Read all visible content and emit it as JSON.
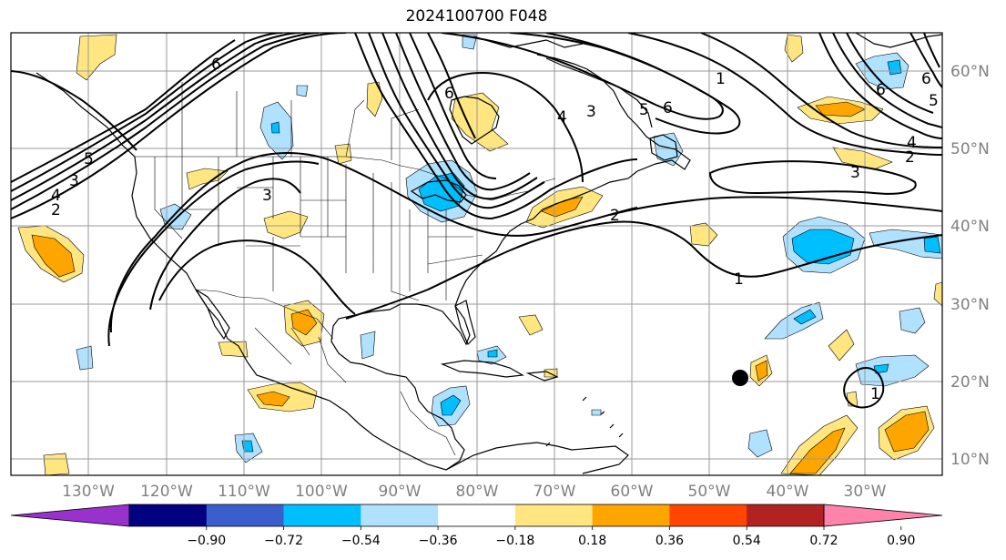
{
  "title": "2024100700 F048",
  "longitude_labels": [
    "130°W",
    "120°W",
    "110°W",
    "100°W",
    "90°W",
    "80°W",
    "70°W",
    "60°W",
    "50°W",
    "40°W",
    "30°W"
  ],
  "latitude_labels": [
    "60°N",
    "50°N",
    "40°N",
    "30°N",
    "20°N",
    "10°N"
  ],
  "contour_labels": [
    {
      "text": "6"
    },
    {
      "text": "4"
    },
    {
      "text": "5"
    },
    {
      "text": "3"
    },
    {
      "text": "2"
    },
    {
      "text": "3"
    },
    {
      "text": "6"
    },
    {
      "text": "4"
    },
    {
      "text": "5"
    },
    {
      "text": "3"
    },
    {
      "text": "6"
    },
    {
      "text": "1"
    },
    {
      "text": "2"
    },
    {
      "text": "1"
    },
    {
      "text": "3"
    },
    {
      "text": "2"
    },
    {
      "text": "4"
    },
    {
      "text": "6"
    },
    {
      "text": "5"
    },
    {
      "text": "6"
    },
    {
      "text": "1"
    }
  ],
  "colorbar": {
    "ticks": [
      "−0.90",
      "−0.72",
      "−0.54",
      "−0.36",
      "−0.18",
      "0.18",
      "0.36",
      "0.54",
      "0.72",
      "0.90"
    ],
    "colors": [
      "#9932cc",
      "#000080",
      "#3a5fcd",
      "#00bfff",
      "#b0e2ff",
      "#ffffff",
      "#ffe680",
      "#ffa500",
      "#ff4500",
      "#b22222",
      "#ff82ab"
    ]
  },
  "colors": {
    "frame": "#000000",
    "grid": "#999999",
    "contour": "#000000",
    "coast": "#000000"
  }
}
